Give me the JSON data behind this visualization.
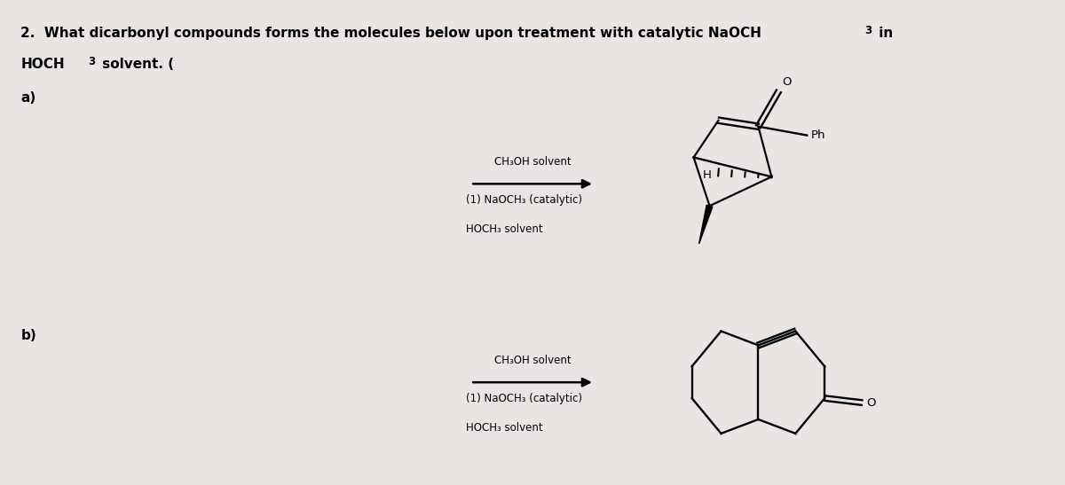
{
  "bg_color": "#e8e5e2",
  "title_line1": "2.  What dicarbonyl compounds forms the molecules below upon treatment with catalytic NaOCH",
  "title_line2_part1": "HOCH",
  "title_line2_part2": " solvent. (",
  "label_a": "a)",
  "label_b": "b)",
  "arrow_label_top_a": "CH₃OH solvent",
  "arrow_label_bot1_a": "(1) NaOCH₃ (catalytic)",
  "arrow_label_bot2_a": "HOCH₃ solvent",
  "arrow_label_top_b": "CH₃OH solvent",
  "arrow_label_bot1_b": "(1) NaOCH₃ (catalytic)",
  "arrow_label_bot2_b": "HOCH₃ solvent"
}
